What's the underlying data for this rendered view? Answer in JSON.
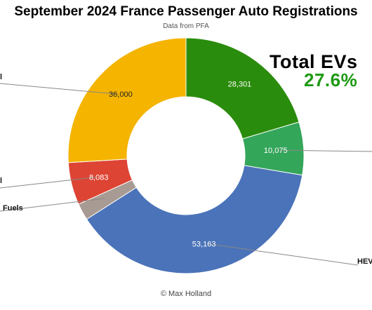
{
  "title": "September 2024 France Passenger Auto Registrations",
  "subtitle": "Data from PFA",
  "callout": {
    "line1": "Total EVs",
    "line2": "27.6%"
  },
  "footer": "© Max Holland",
  "colors": {
    "ev_accent": "#1e9a14"
  },
  "chart_data": {
    "type": "pie",
    "donut": true,
    "slices": [
      {
        "value": 28301,
        "label": "28,301",
        "color": "#2a8c0c",
        "outer_label": ""
      },
      {
        "value": 10075,
        "label": "10,075",
        "color": "#34a65a",
        "outer_label": ""
      },
      {
        "value": 53163,
        "label": "53,163",
        "color": "#4b73b9",
        "outer_label": "HEV"
      },
      {
        "value": 3200,
        "label": "",
        "color": "#a89b93",
        "outer_label": "Fuels"
      },
      {
        "value": 8083,
        "label": "8,083",
        "color": "#dd4433",
        "outer_label": "l"
      },
      {
        "value": 36000,
        "label": "36,000",
        "color": "#f4b400",
        "outer_label": "l"
      }
    ]
  }
}
